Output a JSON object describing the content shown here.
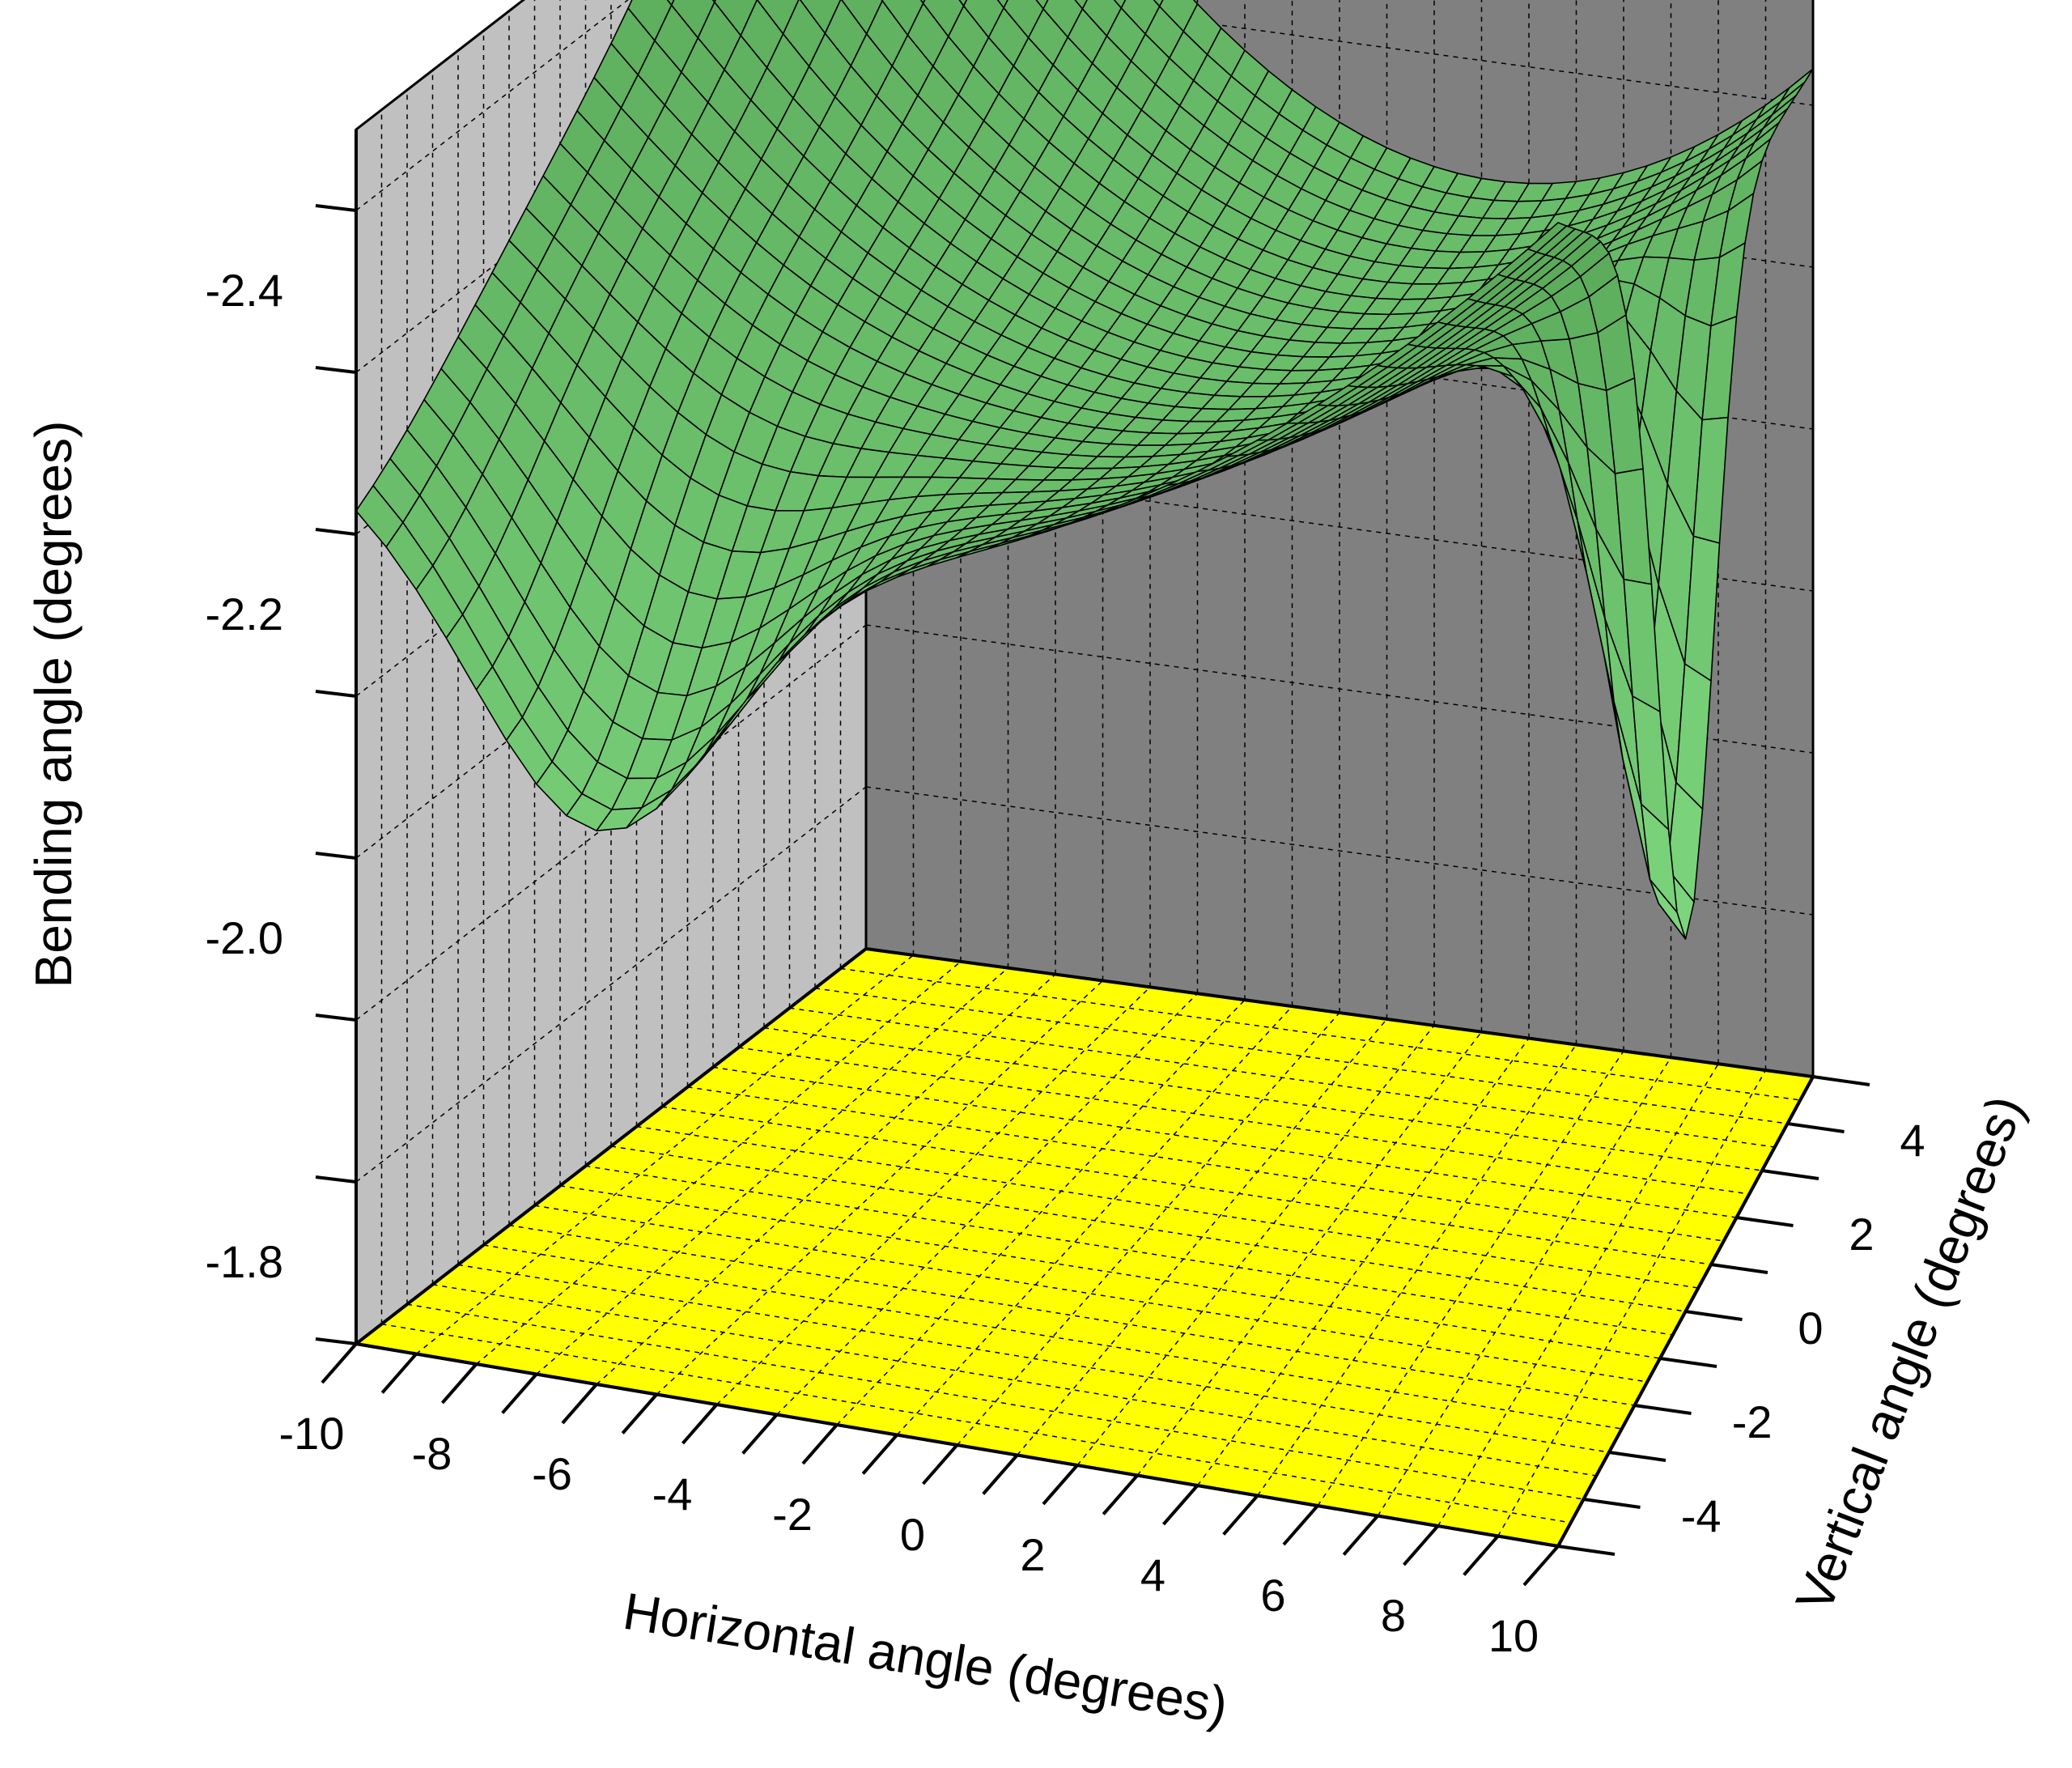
{
  "chart_data": {
    "type": "surface3d",
    "title": "",
    "xlabel": "Horizontal angle (degrees)",
    "ylabel": "Vertical angle (degrees)",
    "zlabel": "Bending angle (degrees)",
    "xlim": [
      -10,
      10
    ],
    "ylim": [
      -5,
      5
    ],
    "zlim": [
      -1.75,
      -2.5
    ],
    "x_ticks": [
      -10,
      -8,
      -6,
      -4,
      -2,
      0,
      2,
      4,
      6,
      8,
      10
    ],
    "x_tick_labels": [
      "-10",
      "-8",
      "-6",
      "-4",
      "-2",
      "0",
      "2",
      "4",
      "6",
      "8",
      "10"
    ],
    "y_ticks": [
      -4,
      -2,
      0,
      2,
      4
    ],
    "y_tick_labels": [
      "-4",
      "-2",
      "0",
      "2",
      "4"
    ],
    "z_ticks": [
      -1.8,
      -2.0,
      -2.2,
      -2.4
    ],
    "z_tick_labels": [
      "-1.8",
      "-2.0",
      "-2.2",
      "-2.4"
    ],
    "grid": true,
    "surface": {
      "description_points": {
        "center_value": -2.26,
        "corner_x_-10_y_-5": -2.4,
        "corner_x_-10_y_5": -2.48,
        "corner_x_10_y_-5": -2.4,
        "corner_x_10_y_5": -2.42,
        "min_near_x_-6_y_-5": -2.08,
        "min_near_x_10_y_0": -1.98
      }
    },
    "colors": {
      "surface": "#7ed07e",
      "floor": "#ffff00",
      "left_wall": "#c0c0c0",
      "back_wall": "#808080"
    }
  }
}
